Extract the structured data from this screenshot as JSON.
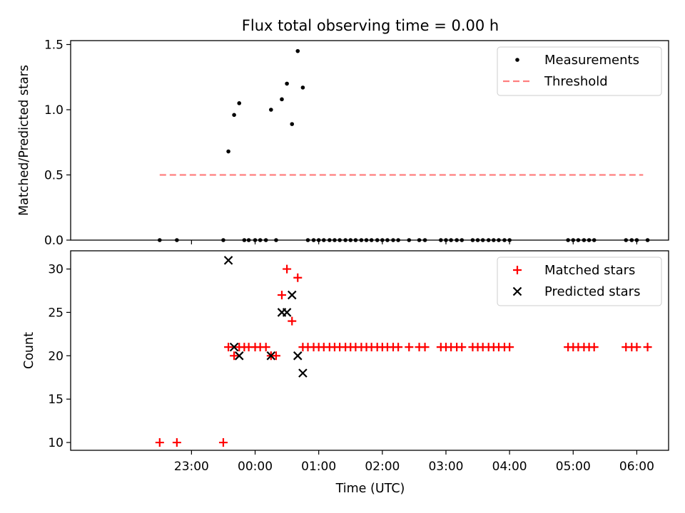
{
  "chart_data": {
    "title": "Flux total observing time = 0.00 h",
    "xlabel": "Time (UTC)",
    "x_unit": "time of day (UTC), hours past midnight; negative = before midnight",
    "x_range": [
      -2.9,
      6.5
    ],
    "x_ticks": [
      {
        "value": -1.0,
        "label": "23:00"
      },
      {
        "value": 0.0,
        "label": "00:00"
      },
      {
        "value": 1.0,
        "label": "01:00"
      },
      {
        "value": 2.0,
        "label": "02:00"
      },
      {
        "value": 3.0,
        "label": "03:00"
      },
      {
        "value": 4.0,
        "label": "04:00"
      },
      {
        "value": 5.0,
        "label": "05:00"
      },
      {
        "value": 6.0,
        "label": "06:00"
      }
    ],
    "panels": [
      {
        "type": "scatter",
        "ylabel": "Matched/Predicted stars",
        "ylim": [
          0,
          1.53
        ],
        "yticks": [
          "0.0",
          "0.5",
          "1.0",
          "1.5"
        ],
        "legend_position": "top-right",
        "series": [
          {
            "name": "Measurements",
            "marker": "dot",
            "color": "#000000",
            "points": [
              [
                -1.5,
                0
              ],
              [
                -1.23,
                0
              ],
              [
                -0.5,
                0
              ],
              [
                -0.42,
                0.68
              ],
              [
                -0.33,
                0.96
              ],
              [
                -0.25,
                1.05
              ],
              [
                -0.17,
                0
              ],
              [
                -0.1,
                0
              ],
              [
                0.0,
                0
              ],
              [
                0.08,
                0
              ],
              [
                0.17,
                0
              ],
              [
                0.25,
                1.0
              ],
              [
                0.33,
                0
              ],
              [
                0.42,
                1.08
              ],
              [
                0.5,
                1.2
              ],
              [
                0.58,
                0.89
              ],
              [
                0.67,
                1.45
              ],
              [
                0.75,
                1.17
              ],
              [
                0.83,
                0
              ],
              [
                0.92,
                0
              ],
              [
                1.0,
                0
              ],
              [
                1.08,
                0
              ],
              [
                1.17,
                0
              ],
              [
                1.25,
                0
              ],
              [
                1.33,
                0
              ],
              [
                1.42,
                0
              ],
              [
                1.5,
                0
              ],
              [
                1.58,
                0
              ],
              [
                1.67,
                0
              ],
              [
                1.75,
                0
              ],
              [
                1.83,
                0
              ],
              [
                1.92,
                0
              ],
              [
                2.0,
                0
              ],
              [
                2.08,
                0
              ],
              [
                2.17,
                0
              ],
              [
                2.25,
                0
              ],
              [
                2.42,
                0
              ],
              [
                2.58,
                0
              ],
              [
                2.67,
                0
              ],
              [
                2.92,
                0
              ],
              [
                3.0,
                0
              ],
              [
                3.08,
                0
              ],
              [
                3.17,
                0
              ],
              [
                3.25,
                0
              ],
              [
                3.42,
                0
              ],
              [
                3.5,
                0
              ],
              [
                3.58,
                0
              ],
              [
                3.67,
                0
              ],
              [
                3.75,
                0
              ],
              [
                3.83,
                0
              ],
              [
                3.92,
                0
              ],
              [
                4.0,
                0
              ],
              [
                4.92,
                0
              ],
              [
                5.0,
                0
              ],
              [
                5.08,
                0
              ],
              [
                5.17,
                0
              ],
              [
                5.25,
                0
              ],
              [
                5.33,
                0
              ],
              [
                5.83,
                0
              ],
              [
                5.92,
                0
              ],
              [
                6.0,
                0
              ],
              [
                6.17,
                0
              ]
            ]
          },
          {
            "name": "Threshold",
            "marker": "dashed-line",
            "color": "#ff7f7f",
            "points": [
              [
                -1.5,
                0.5
              ],
              [
                6.1,
                0.5
              ]
            ]
          }
        ]
      },
      {
        "type": "scatter",
        "ylabel": "Count",
        "ylim": [
          9.1,
          32.1
        ],
        "yticks": [
          "10",
          "15",
          "20",
          "25",
          "30"
        ],
        "legend_position": "top-right",
        "series": [
          {
            "name": "Matched stars",
            "marker": "plus",
            "color": "#ff0000",
            "points": [
              [
                -1.5,
                10
              ],
              [
                -1.23,
                10
              ],
              [
                -0.5,
                10
              ],
              [
                -0.42,
                21
              ],
              [
                -0.33,
                20
              ],
              [
                -0.25,
                21
              ],
              [
                -0.17,
                21
              ],
              [
                -0.1,
                21
              ],
              [
                0.0,
                21
              ],
              [
                0.08,
                21
              ],
              [
                0.17,
                21
              ],
              [
                0.25,
                20
              ],
              [
                0.33,
                20
              ],
              [
                0.42,
                27
              ],
              [
                0.5,
                30
              ],
              [
                0.58,
                24
              ],
              [
                0.67,
                29
              ],
              [
                0.75,
                21
              ],
              [
                0.83,
                21
              ],
              [
                0.92,
                21
              ],
              [
                1.0,
                21
              ],
              [
                1.08,
                21
              ],
              [
                1.17,
                21
              ],
              [
                1.25,
                21
              ],
              [
                1.33,
                21
              ],
              [
                1.42,
                21
              ],
              [
                1.5,
                21
              ],
              [
                1.58,
                21
              ],
              [
                1.67,
                21
              ],
              [
                1.75,
                21
              ],
              [
                1.83,
                21
              ],
              [
                1.92,
                21
              ],
              [
                2.0,
                21
              ],
              [
                2.08,
                21
              ],
              [
                2.17,
                21
              ],
              [
                2.25,
                21
              ],
              [
                2.42,
                21
              ],
              [
                2.58,
                21
              ],
              [
                2.67,
                21
              ],
              [
                2.92,
                21
              ],
              [
                3.0,
                21
              ],
              [
                3.08,
                21
              ],
              [
                3.17,
                21
              ],
              [
                3.25,
                21
              ],
              [
                3.42,
                21
              ],
              [
                3.5,
                21
              ],
              [
                3.58,
                21
              ],
              [
                3.67,
                21
              ],
              [
                3.75,
                21
              ],
              [
                3.83,
                21
              ],
              [
                3.92,
                21
              ],
              [
                4.0,
                21
              ],
              [
                4.92,
                21
              ],
              [
                5.0,
                21
              ],
              [
                5.08,
                21
              ],
              [
                5.17,
                21
              ],
              [
                5.25,
                21
              ],
              [
                5.33,
                21
              ],
              [
                5.83,
                21
              ],
              [
                5.92,
                21
              ],
              [
                6.0,
                21
              ],
              [
                6.17,
                21
              ]
            ]
          },
          {
            "name": "Predicted stars",
            "marker": "cross",
            "color": "#000000",
            "points": [
              [
                -0.42,
                31
              ],
              [
                -0.33,
                21
              ],
              [
                -0.25,
                20
              ],
              [
                0.25,
                20
              ],
              [
                0.42,
                25
              ],
              [
                0.5,
                25
              ],
              [
                0.58,
                27
              ],
              [
                0.67,
                20
              ],
              [
                0.75,
                18
              ]
            ]
          }
        ]
      }
    ]
  }
}
